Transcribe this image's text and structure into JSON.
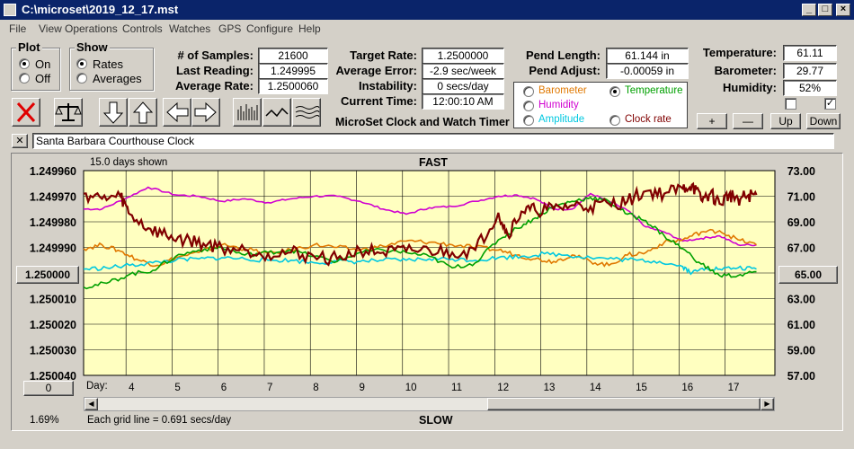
{
  "window": {
    "title": "C:\\microset\\2019_12_17.mst"
  },
  "menu": [
    "File",
    "View",
    "Operations",
    "Controls",
    "Watches",
    "GPS",
    "Configure",
    "Help"
  ],
  "plot_group": {
    "title": "Plot",
    "on": "On",
    "off": "Off",
    "selected": "On"
  },
  "show_group": {
    "title": "Show",
    "rates": "Rates",
    "averages": "Averages",
    "selected": "Rates"
  },
  "stats": {
    "samples_label": "# of Samples:",
    "samples": "21600",
    "last_label": "Last Reading:",
    "last": "1.249995",
    "avg_rate_label": "Average Rate:",
    "avg_rate": "1.2500060",
    "target_label": "Target Rate:",
    "target": "1.2500000",
    "avg_error_label": "Average Error:",
    "avg_error": "-2.9 sec/week",
    "instability_label": "Instability:",
    "instability": "0 secs/day",
    "time_label": "Current Time:",
    "time": "12:00:10 AM",
    "pend_length_label": "Pend Length:",
    "pend_length": "61.144 in",
    "pend_adjust_label": "Pend Adjust:",
    "pend_adjust": "-0.00059 in",
    "temperature_label": "Temperature:",
    "temperature": "61.11",
    "barometer_label": "Barometer:",
    "barometer": "29.77",
    "humidity_label": "Humidity:",
    "humidity": "52%"
  },
  "app_title": "MicroSet Clock and Watch Timer",
  "legend": {
    "barometer": "Barometer",
    "temperature": "Temperature",
    "humidity": "Humidity",
    "amplitude": "Amplitude",
    "clock_rate": "Clock rate",
    "selected": "Temperature",
    "colors": {
      "barometer": "#e07800",
      "temperature": "#00a000",
      "humidity": "#d000d0",
      "amplitude": "#00c8e0",
      "clock_rate": "#800000"
    }
  },
  "right_buttons": {
    "plus": "+",
    "minus": "—",
    "up": "Up",
    "down": "Down"
  },
  "checkboxes": {
    "left": false,
    "right": true,
    "right_mark": "✓"
  },
  "watch_name": "Santa Barbara Courthouse Clock",
  "close_x": "✕",
  "chart_data": {
    "type": "line",
    "days_shown": "15.0 days shown",
    "top_label": "FAST",
    "bottom_label": "SLOW",
    "y_left_ticks": [
      "1.249960",
      "1.249970",
      "1.249980",
      "1.249990",
      "1.250000",
      "1.250010",
      "1.250020",
      "1.250030",
      "1.250040"
    ],
    "y_left_center_button": "1.250000",
    "y_right_ticks": [
      "73.00",
      "71.00",
      "69.00",
      "67.00",
      "65.00",
      "63.00",
      "61.00",
      "59.00",
      "57.00"
    ],
    "y_right_center_button": "65.00",
    "x_label": "Day:",
    "x_ticks": [
      "4",
      "5",
      "6",
      "7",
      "8",
      "9",
      "10",
      "11",
      "12",
      "13",
      "14",
      "15",
      "16",
      "17"
    ],
    "x_range": [
      3,
      18
    ],
    "ylim_left": [
      1.24996,
      1.25004
    ],
    "ylim_right": [
      57,
      73
    ],
    "grid_note": "Each grid line = 0.691 secs/day",
    "bottom_left_button": "0",
    "percent": "1.69%",
    "series": [
      {
        "key": "humidity",
        "color": "#d000d0",
        "x": [
          3.0,
          3.4,
          3.9,
          4.4,
          5.0,
          5.5,
          6.0,
          6.5,
          7.0,
          7.5,
          8.0,
          8.5,
          9.0,
          9.5,
          10.0,
          10.5,
          11.0,
          11.5,
          12.0,
          12.4,
          12.8,
          13.2,
          13.6,
          14.0,
          14.4,
          14.8,
          15.2,
          15.6,
          16.0,
          16.4,
          16.8,
          17.2,
          17.6
        ],
        "y": [
          70.0,
          70.0,
          70.8,
          71.7,
          71.1,
          71.0,
          70.6,
          70.8,
          70.5,
          70.8,
          71.0,
          71.0,
          70.6,
          70.0,
          69.6,
          70.1,
          70.2,
          70.6,
          71.0,
          71.1,
          70.8,
          70.0,
          70.0,
          71.2,
          70.6,
          69.9,
          68.6,
          68.2,
          67.5,
          67.7,
          67.9,
          67.2,
          67.2
        ]
      },
      {
        "key": "barometer",
        "color": "#e07800",
        "x": [
          3.0,
          3.4,
          3.8,
          4.2,
          4.6,
          5.0,
          5.5,
          6.0,
          6.5,
          7.0,
          7.5,
          8.0,
          8.5,
          9.0,
          9.5,
          10.0,
          10.5,
          11.0,
          11.5,
          12.0,
          12.4,
          12.8,
          13.2,
          13.6,
          14.0,
          14.4,
          14.8,
          15.2,
          15.6,
          16.0,
          16.4,
          16.8,
          17.2,
          17.6
        ],
        "y": [
          66.9,
          67.2,
          66.7,
          66.0,
          65.6,
          66.2,
          66.6,
          67.2,
          66.9,
          66.5,
          66.8,
          67.2,
          67.0,
          66.8,
          67.1,
          67.5,
          67.4,
          67.2,
          67.0,
          66.8,
          66.4,
          66.1,
          65.9,
          66.4,
          65.9,
          65.6,
          66.4,
          66.6,
          67.4,
          67.6,
          68.2,
          68.3,
          67.6,
          67.2
        ]
      },
      {
        "key": "amplitude",
        "color": "#00c8e0",
        "x": [
          3.0,
          3.5,
          4.0,
          4.5,
          5.0,
          5.5,
          6.0,
          6.5,
          7.0,
          7.5,
          8.0,
          8.5,
          9.0,
          9.5,
          10.0,
          10.5,
          11.0,
          11.5,
          12.0,
          12.5,
          13.0,
          13.5,
          14.0,
          14.5,
          15.0,
          15.5,
          16.0,
          16.2,
          16.5,
          16.8,
          17.2,
          17.6
        ],
        "y": [
          65.3,
          65.4,
          65.6,
          65.8,
          66.0,
          66.1,
          66.2,
          66.1,
          66.0,
          66.0,
          65.8,
          65.9,
          65.9,
          66.0,
          66.0,
          66.1,
          66.1,
          66.0,
          66.2,
          66.3,
          66.5,
          66.4,
          66.2,
          66.1,
          66.0,
          65.9,
          65.5,
          65.0,
          65.4,
          65.3,
          65.4,
          65.3
        ]
      },
      {
        "key": "temperature",
        "color": "#00a000",
        "x": [
          3.0,
          3.5,
          4.0,
          4.5,
          5.0,
          5.5,
          6.0,
          6.5,
          7.0,
          7.5,
          8.0,
          8.5,
          9.0,
          9.5,
          10.0,
          10.5,
          11.0,
          11.5,
          12.0,
          12.4,
          12.8,
          13.2,
          13.6,
          14.0,
          14.4,
          14.8,
          15.2,
          15.6,
          16.0,
          16.4,
          16.8,
          17.2,
          17.6
        ],
        "y": [
          63.9,
          64.2,
          64.9,
          65.2,
          66.3,
          66.8,
          67.0,
          66.4,
          66.6,
          66.8,
          66.3,
          65.9,
          66.6,
          66.8,
          66.6,
          66.3,
          65.4,
          65.8,
          67.6,
          68.5,
          69.3,
          70.2,
          70.6,
          70.9,
          70.6,
          69.6,
          69.1,
          67.9,
          66.9,
          65.7,
          64.8,
          64.8,
          65.1
        ]
      },
      {
        "key": "clock_rate",
        "color": "#800000",
        "x": [
          3.0,
          3.4,
          3.8,
          4.0,
          4.4,
          4.8,
          5.2,
          5.6,
          6.0,
          6.5,
          7.0,
          7.5,
          8.0,
          8.5,
          9.0,
          9.5,
          10.0,
          10.5,
          11.0,
          11.5,
          12.0,
          12.2,
          12.5,
          12.8,
          13.2,
          13.6,
          14.0,
          14.4,
          14.8,
          15.2,
          15.6,
          16.0,
          16.2,
          16.4,
          16.6,
          16.8,
          17.0,
          17.2,
          17.4,
          17.6
        ],
        "y": [
          71.2,
          70.8,
          71.0,
          69.6,
          68.5,
          67.9,
          67.6,
          67.3,
          67.0,
          66.8,
          66.5,
          66.6,
          66.3,
          66.1,
          66.8,
          66.6,
          66.7,
          66.8,
          66.6,
          66.8,
          69.7,
          68.0,
          69.8,
          69.9,
          70.0,
          70.3,
          70.2,
          70.4,
          70.6,
          71.4,
          71.2,
          71.6,
          71.9,
          70.7,
          71.2,
          70.4,
          71.1,
          70.8,
          71.0,
          71.1
        ]
      }
    ]
  }
}
